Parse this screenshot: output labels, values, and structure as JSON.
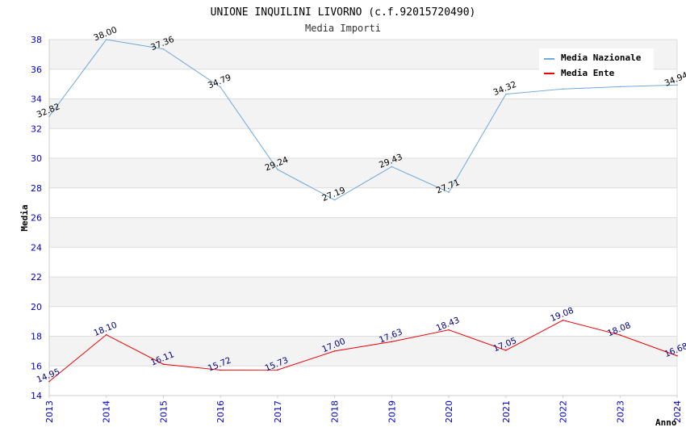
{
  "chart_data": {
    "type": "line",
    "title": "UNIONE INQUILINI LIVORNO (c.f.92015720490)",
    "subtitle": "Media Importi",
    "xlabel": "Anno",
    "ylabel": "Media",
    "ylim": [
      14,
      38
    ],
    "yticks": [
      14,
      16,
      18,
      20,
      22,
      24,
      26,
      28,
      30,
      32,
      34,
      36,
      38
    ],
    "ytick_labels": [
      "14",
      "16",
      "18",
      "20",
      "22",
      "24",
      "26",
      "28",
      "30",
      "32",
      "34",
      "36",
      "38"
    ],
    "x": [
      "2013",
      "2014",
      "2015",
      "2016",
      "2017",
      "2018",
      "2019",
      "2020",
      "2021",
      "2022",
      "2023",
      "2024"
    ],
    "legend_position": "top-right",
    "series": [
      {
        "name": "Media Nazionale",
        "color": "#6fa8dc",
        "label_color": "#000000",
        "values": [
          32.82,
          38.0,
          37.36,
          34.79,
          29.24,
          27.19,
          29.43,
          27.71,
          34.32,
          34.67,
          34.82,
          34.94
        ],
        "labels": [
          "32.82",
          "38.00",
          "37.36",
          "34.79",
          "29.24",
          "27.19",
          "29.43",
          "27.71",
          "34.32",
          "",
          "",
          "34.94"
        ]
      },
      {
        "name": "Media Ente",
        "color": "#ee0000",
        "label_color": "#000080",
        "values": [
          14.95,
          18.1,
          16.11,
          15.72,
          15.73,
          17.0,
          17.63,
          18.43,
          17.05,
          19.08,
          18.08,
          16.68
        ],
        "labels": [
          "14.95",
          "18.10",
          "16.11",
          "15.72",
          "15.73",
          "17.00",
          "17.63",
          "18.43",
          "17.05",
          "19.08",
          "18.08",
          "16.68"
        ]
      }
    ]
  }
}
